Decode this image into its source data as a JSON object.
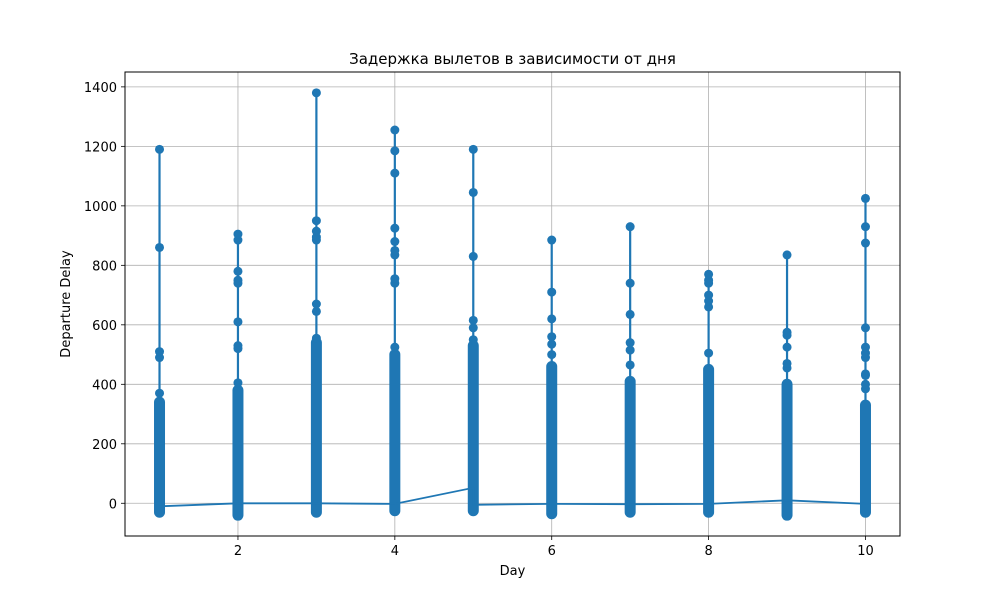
{
  "chart_data": {
    "type": "line",
    "title": "Задержка вылетов в зависимости от дня",
    "xlabel": "Day",
    "ylabel": "Departure Delay",
    "xlim": [
      0.56,
      10.44
    ],
    "ylim": [
      -110,
      1450
    ],
    "xticks": [
      2,
      4,
      6,
      8,
      10
    ],
    "yticks": [
      0,
      200,
      400,
      600,
      800,
      1000,
      1200,
      1400
    ],
    "grid": true,
    "color": "#1f77b4",
    "series": [
      {
        "days": [
          {
            "x": 1,
            "min": -30,
            "dense_max": 340,
            "outliers": [
              370,
              490,
              510,
              860,
              1190
            ]
          },
          {
            "x": 2,
            "min": -40,
            "dense_max": 380,
            "outliers": [
              405,
              520,
              530,
              610,
              740,
              750,
              780,
              885,
              905
            ]
          },
          {
            "x": 3,
            "min": -30,
            "dense_max": 540,
            "outliers": [
              555,
              645,
              670,
              885,
              895,
              915,
              950,
              1380
            ]
          },
          {
            "x": 4,
            "min": -25,
            "dense_max": 500,
            "outliers": [
              525,
              740,
              755,
              835,
              850,
              880,
              925,
              1110,
              1185,
              1255
            ]
          },
          {
            "x": 5,
            "min": -25,
            "dense_max": 530,
            "outliers": [
              550,
              590,
              615,
              830,
              1045,
              1190
            ]
          },
          {
            "x": 6,
            "min": -35,
            "dense_max": 460,
            "outliers": [
              500,
              535,
              560,
              620,
              710,
              885
            ]
          },
          {
            "x": 7,
            "min": -30,
            "dense_max": 410,
            "outliers": [
              465,
              515,
              540,
              635,
              740,
              930
            ]
          },
          {
            "x": 8,
            "min": -30,
            "dense_max": 450,
            "outliers": [
              505,
              660,
              680,
              700,
              740,
              750,
              770
            ]
          },
          {
            "x": 9,
            "min": -40,
            "dense_max": 400,
            "outliers": [
              455,
              470,
              525,
              565,
              575,
              835
            ]
          },
          {
            "x": 10,
            "min": -30,
            "dense_max": 330,
            "outliers": [
              385,
              400,
              430,
              435,
              490,
              505,
              525,
              590,
              875,
              930,
              1025
            ]
          }
        ],
        "trend": [
          {
            "x": 1,
            "y": -10
          },
          {
            "x": 2,
            "y": 0
          },
          {
            "x": 3,
            "y": 0
          },
          {
            "x": 4,
            "y": -2
          },
          {
            "x": 5,
            "y": 52
          },
          {
            "x": 5,
            "y": -5
          },
          {
            "x": 6,
            "y": -2
          },
          {
            "x": 7,
            "y": -3
          },
          {
            "x": 8,
            "y": -2
          },
          {
            "x": 9,
            "y": 10
          },
          {
            "x": 10,
            "y": -2
          }
        ]
      }
    ]
  }
}
